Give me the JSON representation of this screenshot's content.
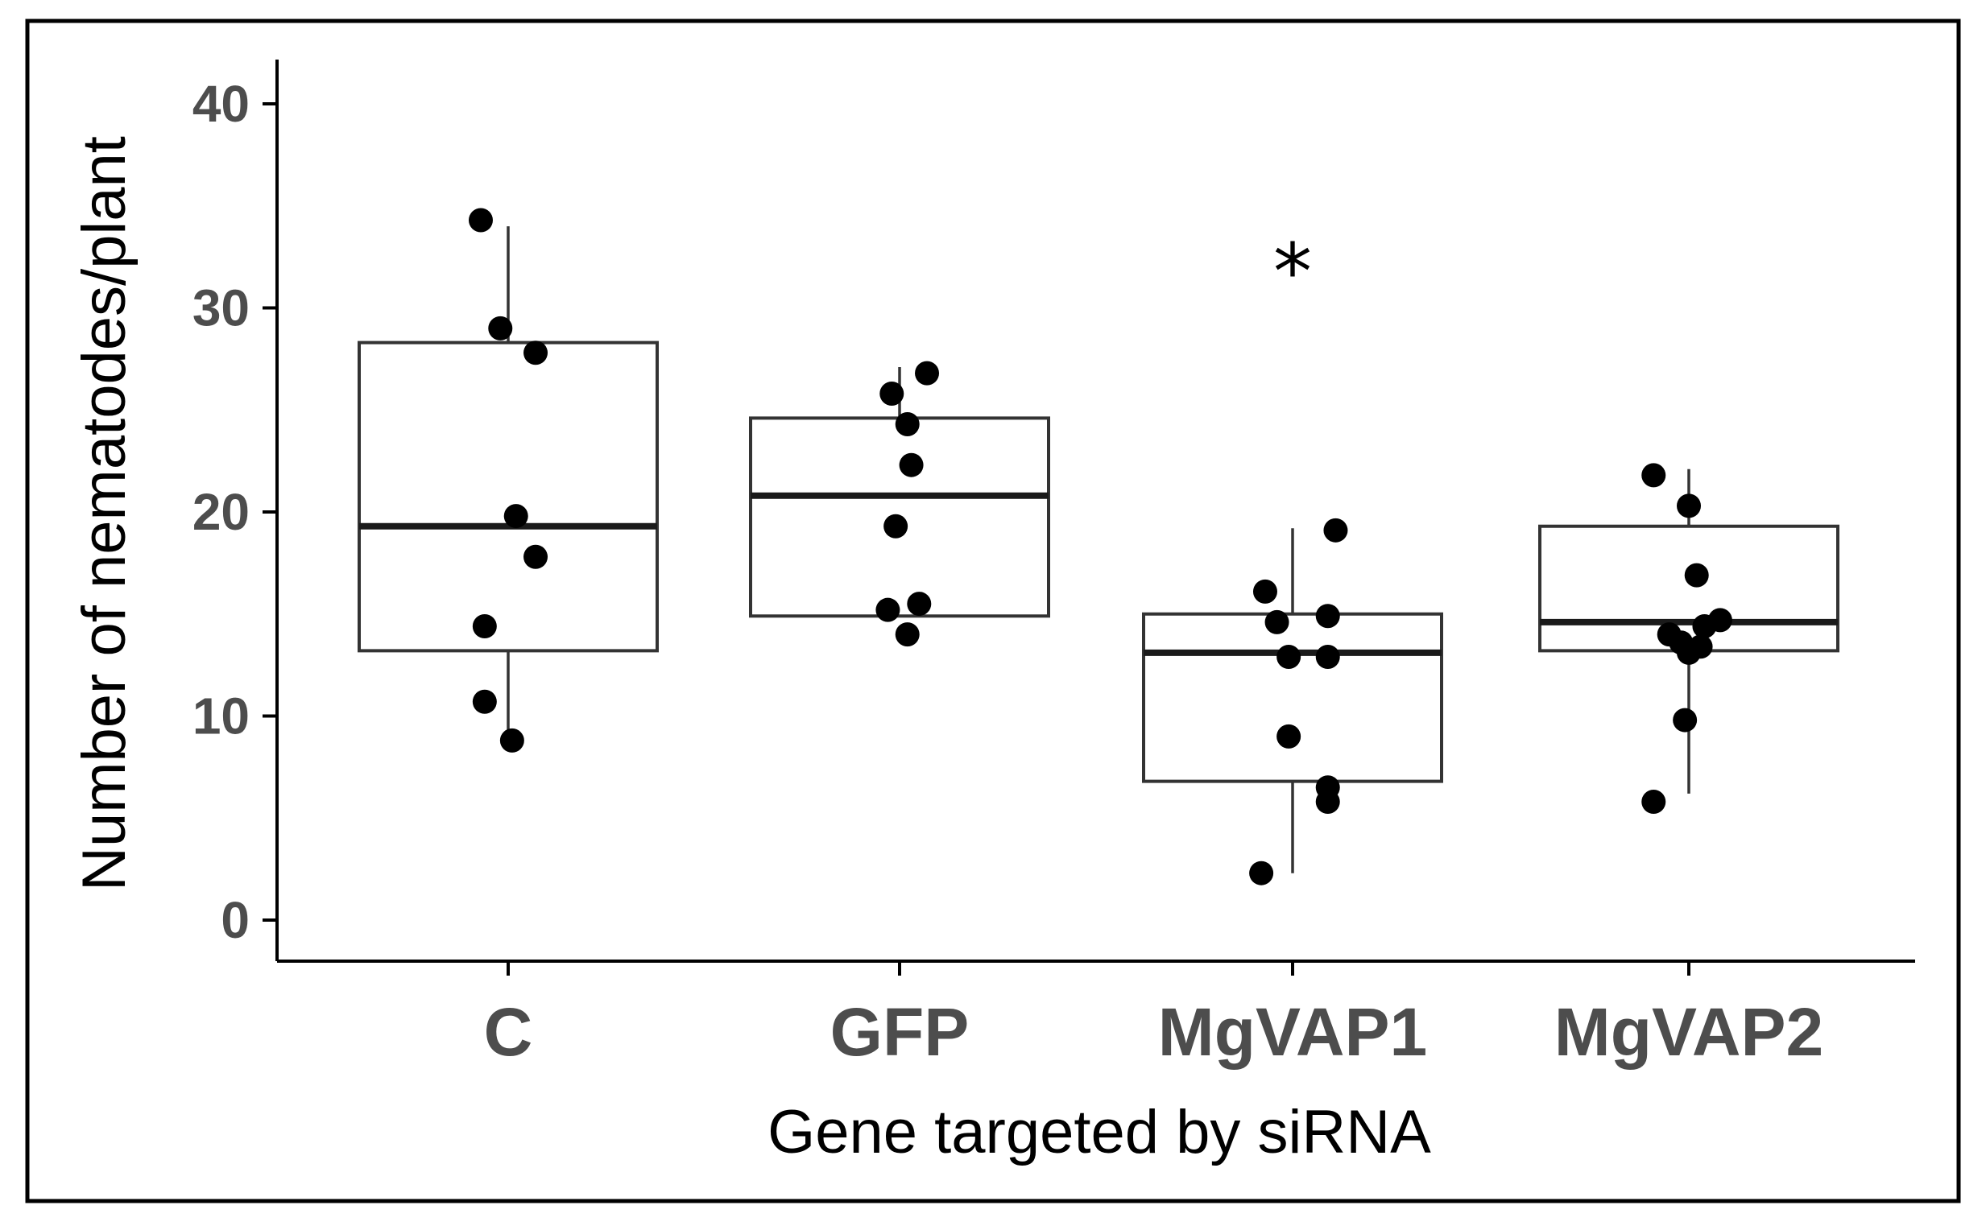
{
  "chart_data": {
    "type": "boxplot",
    "xlabel": "Gene targeted by siRNA",
    "ylabel": "Number of nematodes/plant",
    "ylim": [
      -2,
      42
    ],
    "yticks": [
      0,
      10,
      20,
      30,
      40
    ],
    "ytick_labels": [
      "0",
      "10",
      "20",
      "30",
      "40"
    ],
    "categories": [
      "C",
      "GFP",
      "MgVAP1",
      "MgVAP2"
    ],
    "groups": [
      {
        "name": "C",
        "q1": 13.2,
        "median": 19.3,
        "q3": 28.3,
        "whisker_low": 8.8,
        "whisker_high": 34.0,
        "points": [
          [
            -0.07,
            34.3
          ],
          [
            -0.02,
            29.0
          ],
          [
            0.07,
            27.8
          ],
          [
            0.02,
            19.8
          ],
          [
            0.07,
            17.8
          ],
          [
            -0.06,
            14.4
          ],
          [
            -0.06,
            10.7
          ],
          [
            0.01,
            8.8
          ]
        ]
      },
      {
        "name": "GFP",
        "q1": 14.9,
        "median": 20.8,
        "q3": 24.6,
        "whisker_low": 14.9,
        "whisker_high": 27.1,
        "points": [
          [
            0.07,
            26.8
          ],
          [
            -0.02,
            25.8
          ],
          [
            0.02,
            24.3
          ],
          [
            0.03,
            22.3
          ],
          [
            -0.01,
            19.3
          ],
          [
            0.05,
            15.5
          ],
          [
            -0.03,
            15.2
          ],
          [
            0.02,
            14.0
          ]
        ]
      },
      {
        "name": "MgVAP1",
        "q1": 6.8,
        "median": 13.1,
        "q3": 15.0,
        "whisker_low": 2.3,
        "whisker_high": 19.2,
        "points": [
          [
            0.11,
            19.1
          ],
          [
            -0.07,
            16.1
          ],
          [
            -0.04,
            14.6
          ],
          [
            0.09,
            14.9
          ],
          [
            -0.01,
            12.9
          ],
          [
            0.09,
            12.9
          ],
          [
            -0.01,
            9.0
          ],
          [
            0.09,
            6.5
          ],
          [
            0.09,
            5.8
          ],
          [
            -0.08,
            2.3
          ]
        ]
      },
      {
        "name": "MgVAP2",
        "q1": 13.2,
        "median": 14.6,
        "q3": 19.3,
        "whisker_low": 6.2,
        "whisker_high": 22.1,
        "points": [
          [
            -0.09,
            21.8
          ],
          [
            0.0,
            20.3
          ],
          [
            0.02,
            16.9
          ],
          [
            0.08,
            14.7
          ],
          [
            0.04,
            14.4
          ],
          [
            -0.05,
            14.0
          ],
          [
            -0.02,
            13.6
          ],
          [
            0.03,
            13.4
          ],
          [
            0.0,
            13.1
          ],
          [
            -0.01,
            9.8
          ],
          [
            -0.09,
            5.8
          ]
        ]
      }
    ],
    "annotations": [
      {
        "text": "*",
        "category": "MgVAP1",
        "y": 32.5
      }
    ]
  }
}
